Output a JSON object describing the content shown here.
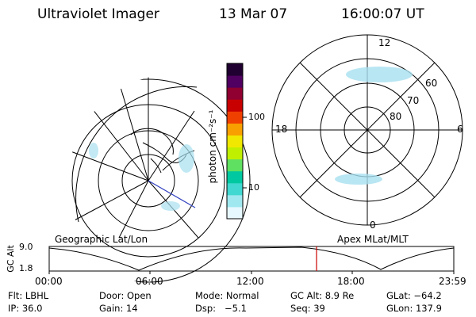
{
  "header": {
    "title": "Ultraviolet Imager",
    "date": "13 Mar 07",
    "time": "16:00:07 UT"
  },
  "left_map": {
    "caption": "Geographic Lat/Lon"
  },
  "right_map": {
    "caption": "Apex MLat/MLT",
    "mlt_labels": [
      "12",
      "18",
      "6",
      "0"
    ],
    "mlat_labels": [
      "60",
      "70",
      "80"
    ]
  },
  "colorbar": {
    "unit_label": "photon cm⁻²s⁻¹",
    "ticks": [
      "100",
      "10"
    ],
    "colors": [
      "#e8f8ff",
      "#a0e8f0",
      "#40d8d0",
      "#00c8a0",
      "#60e060",
      "#c0f000",
      "#f0e800",
      "#f8a000",
      "#f04000",
      "#c80000",
      "#900030",
      "#500060",
      "#200030"
    ]
  },
  "altitude_plot": {
    "ylabel": "GC Alt",
    "yticks": [
      "9.0",
      "1.8"
    ],
    "xticks": [
      "00:00",
      "06:00",
      "12:00",
      "18:00",
      "23:59"
    ],
    "marker_time": "16:00"
  },
  "status": {
    "row1": {
      "filter": "Flt: LBHL",
      "door": "Door: Open",
      "mode": "Mode: Normal",
      "gc_alt": "GC Alt: 8.9 Re",
      "glat": "GLat: −64.2"
    },
    "row2": {
      "ip": "IP: 36.0",
      "gain": "Gain: 14",
      "dsp": "Dsp:   −5.1",
      "seq": "Seq: 39",
      "glon": "GLon: 137.9"
    }
  },
  "colors": {
    "marker": "#cc0000",
    "meridian": "#3040c0",
    "aurora": "#a8e0f0"
  }
}
